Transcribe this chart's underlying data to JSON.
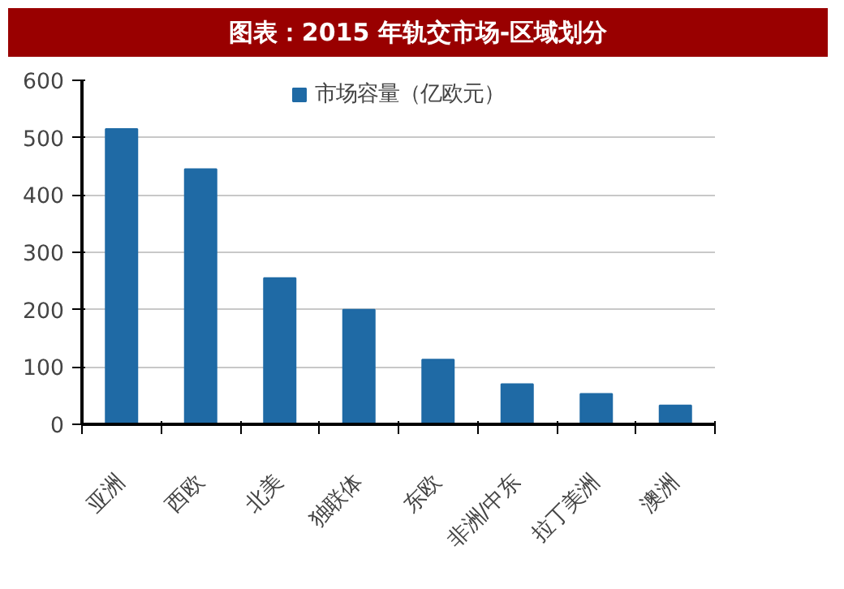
{
  "chart_data": {
    "type": "bar",
    "title": "图表：2015 年轨交市场-区域划分",
    "categories": [
      "亚洲",
      "西欧",
      "北美",
      "独联体",
      "东欧",
      "非洲/中东",
      "拉丁美洲",
      "澳洲"
    ],
    "series": [
      {
        "name": "市场容量（亿欧元）",
        "color": "#1f6aa5",
        "values": [
          515,
          445,
          255,
          200,
          113,
          70,
          53,
          33
        ]
      }
    ],
    "ylim": [
      0,
      600
    ],
    "yticks": [
      0,
      100,
      200,
      300,
      400,
      500,
      600
    ],
    "grid": "y",
    "legend": "top"
  }
}
